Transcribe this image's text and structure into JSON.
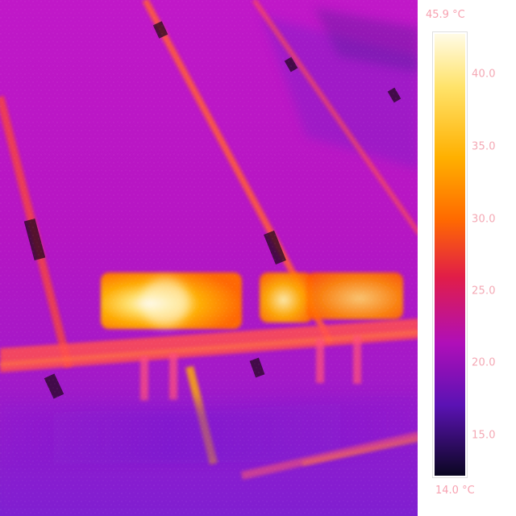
{
  "scale": {
    "max_label": "45.9 °C",
    "min_label": "14.0 °C",
    "ticks": [
      {
        "value": 40,
        "label": "40.0"
      },
      {
        "value": 35,
        "label": "35.0"
      },
      {
        "value": 30,
        "label": "30.0"
      },
      {
        "value": 25,
        "label": "25.0"
      },
      {
        "value": 20,
        "label": "20.0"
      },
      {
        "value": 15,
        "label": "15.0"
      }
    ],
    "colormap": "iron",
    "colors": {
      "hot": "#fffbe6",
      "warm": "#ffb000",
      "mid": "#e11d48",
      "cool": "#b00fb8",
      "cold": "#0b0721"
    }
  }
}
